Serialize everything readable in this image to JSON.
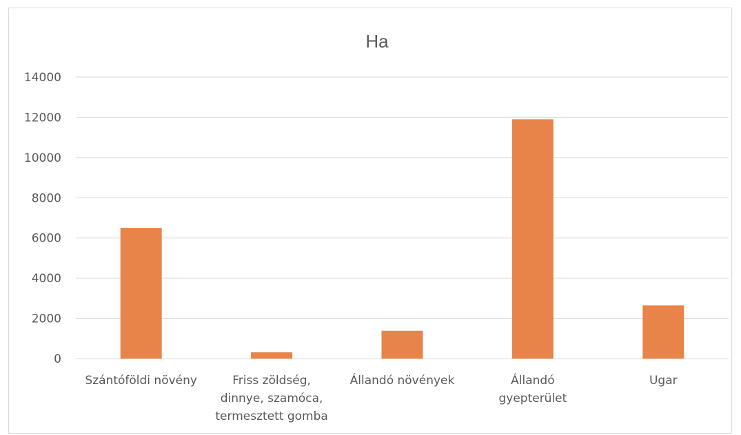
{
  "chart_data": {
    "type": "bar",
    "title": "Ha",
    "categories": [
      [
        "Szántóföldi növény"
      ],
      [
        "Friss zöldség,",
        "dinnye, szamóca,",
        "termesztett gomba"
      ],
      [
        "Állandó növények"
      ],
      [
        "Állandó",
        "gyepterület"
      ],
      [
        "Ugar"
      ]
    ],
    "values": [
      6500,
      320,
      1380,
      11900,
      2650
    ],
    "ylim": [
      0,
      14000
    ],
    "yticks": [
      0,
      2000,
      4000,
      6000,
      8000,
      10000,
      12000,
      14000
    ],
    "grid": true,
    "legend": "none",
    "bar_color": "#E8834A"
  }
}
